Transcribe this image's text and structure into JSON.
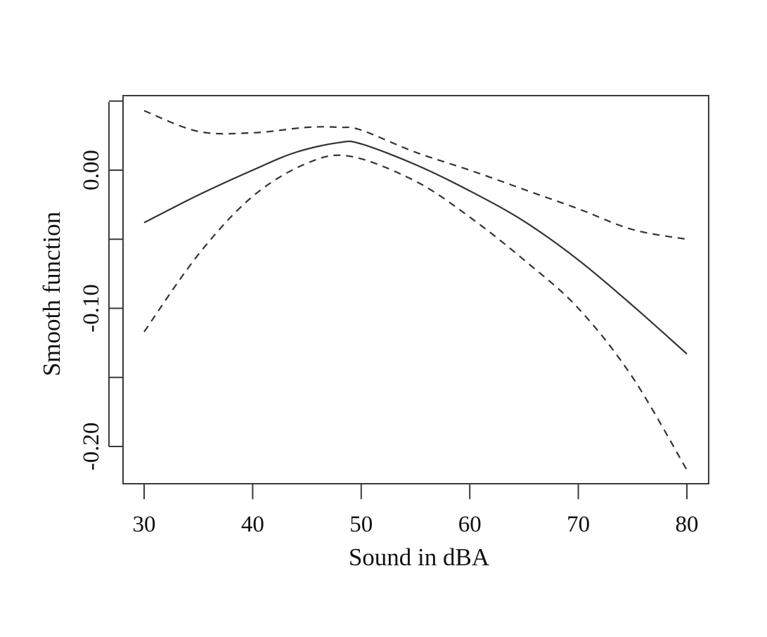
{
  "chart_data": {
    "type": "line",
    "title": "",
    "xlabel": "Sound in dBA",
    "ylabel": "Smooth function",
    "xlim": [
      28,
      82
    ],
    "ylim": [
      -0.227,
      0.055
    ],
    "xticks": [
      30,
      40,
      50,
      60,
      70,
      80
    ],
    "xtick_labels": [
      "30",
      "40",
      "50",
      "60",
      "70",
      "80"
    ],
    "yticks": [
      -0.2,
      -0.15,
      -0.1,
      -0.05,
      0.0,
      0.05
    ],
    "ytick_labels": [
      "-0.20",
      "",
      "-0.10",
      "",
      "0.00",
      ""
    ],
    "grid": false,
    "legend": "none",
    "series": [
      {
        "style": "solid",
        "x": [
          30,
          35,
          40,
          44,
          48,
          50,
          55,
          60,
          65,
          70,
          75,
          80
        ],
        "y": [
          -0.038,
          -0.018,
          0.0,
          0.013,
          0.02,
          0.019,
          0.004,
          -0.015,
          -0.037,
          -0.065,
          -0.098,
          -0.133
        ]
      },
      {
        "style": "dashed",
        "x": [
          30,
          35,
          40,
          45,
          48,
          50,
          55,
          60,
          65,
          70,
          75,
          80
        ],
        "y": [
          0.043,
          0.028,
          0.027,
          0.031,
          0.031,
          0.029,
          0.013,
          0.0,
          -0.014,
          -0.028,
          -0.043,
          -0.05
        ]
      },
      {
        "style": "dashed",
        "x": [
          30,
          35,
          40,
          45,
          49,
          55,
          60,
          65,
          70,
          75,
          80
        ],
        "y": [
          -0.117,
          -0.061,
          -0.019,
          0.005,
          0.01,
          -0.008,
          -0.034,
          -0.065,
          -0.1,
          -0.15,
          -0.217
        ]
      }
    ],
    "colors": {
      "line": "#333333",
      "axis": "#3a3a3a"
    }
  }
}
